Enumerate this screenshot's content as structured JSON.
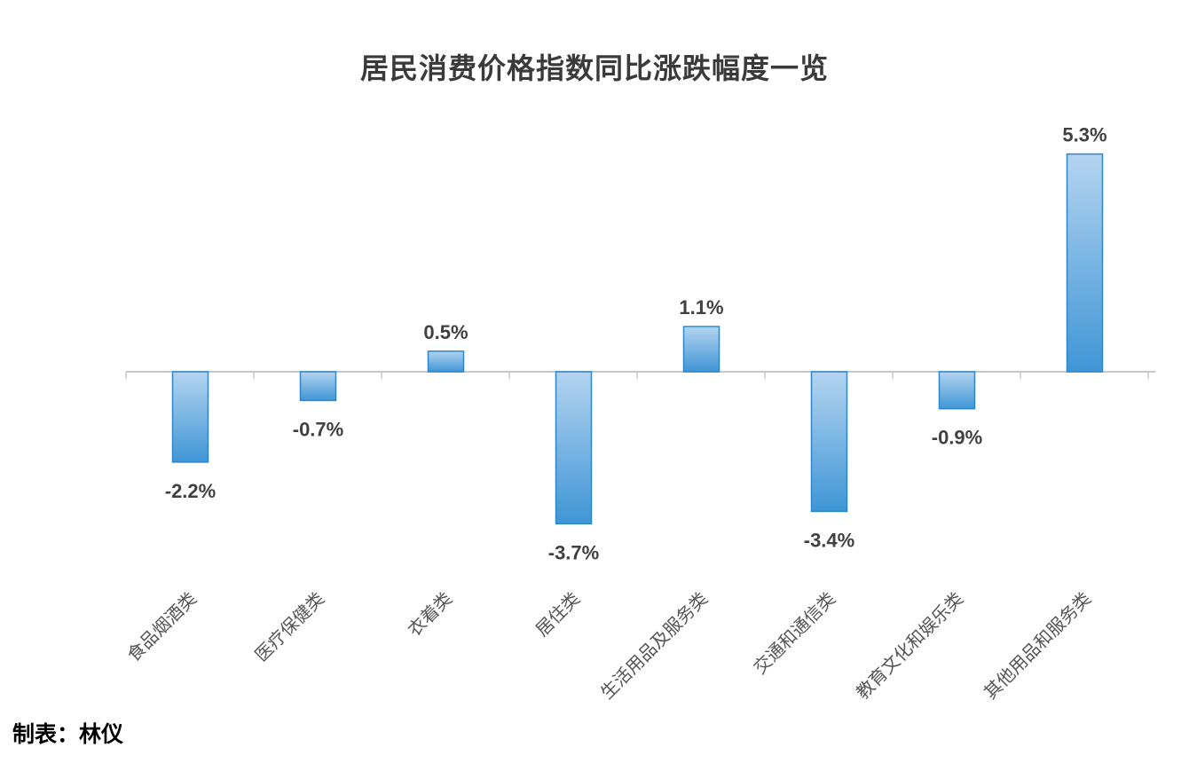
{
  "chart_data": {
    "type": "bar",
    "title": "居民消费价格指数同比涨跌幅度一览",
    "categories": [
      "食品烟酒类",
      "医疗保健类",
      "衣着类",
      "居住类",
      "生活用品及服务类",
      "交通和通信类",
      "教育文化和娱乐类",
      "其他用品和服务类"
    ],
    "values": [
      -2.2,
      -0.7,
      0.5,
      -3.7,
      1.1,
      -3.4,
      -0.9,
      5.3
    ],
    "value_labels": [
      "-2.2%",
      "-0.7%",
      "0.5%",
      "-3.7%",
      "1.1%",
      "-3.4%",
      "-0.9%",
      "5.3%"
    ],
    "unit": "%",
    "xlabel": "",
    "ylabel": "",
    "grid": false,
    "legend": "none",
    "colors": {
      "bar_light": "#b4d4f0",
      "bar_dark": "#3f96d6",
      "bar_border": "#2f86c8",
      "axis": "#c8c8c8",
      "label_text": "#404040",
      "category_text": "#555555"
    }
  },
  "credit": "制表：林仪"
}
